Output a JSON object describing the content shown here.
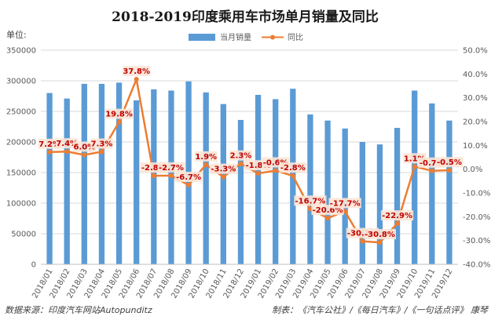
{
  "chart_data": {
    "type": "bar+line",
    "title": "2018-2019印度乘用车市场单月销量及同比",
    "y_unit_label": "单位:",
    "categories": [
      "2018/01",
      "2018/02",
      "2018/03",
      "2018/04",
      "2018/05",
      "2018/06",
      "2018/07",
      "2018/08",
      "2018/09",
      "2018/10",
      "2018/11",
      "2018/12",
      "2019/01",
      "2019/02",
      "2019/03",
      "2019/04",
      "2019/05",
      "2019/06",
      "2019/07",
      "2019/08",
      "2019/09",
      "2019/10",
      "2019/11",
      "2019/12"
    ],
    "series": [
      {
        "name": "当月销量",
        "kind": "bar",
        "axis": "left",
        "color": "#5b9bd5",
        "values": [
          280000,
          271000,
          295000,
          295000,
          297000,
          268000,
          286000,
          284000,
          299000,
          281000,
          262000,
          236000,
          277000,
          270000,
          287000,
          245000,
          235000,
          222000,
          200000,
          196000,
          223000,
          284000,
          263000,
          235000
        ]
      },
      {
        "name": "同比",
        "kind": "line",
        "axis": "right",
        "color": "#ed7d31",
        "values": [
          7.2,
          7.4,
          6.0,
          7.3,
          19.8,
          37.8,
          -2.8,
          -2.7,
          -6.7,
          1.9,
          -3.3,
          2.3,
          -1.8,
          -0.6,
          -2.8,
          -16.7,
          -20.6,
          -17.7,
          -30.3,
          -30.8,
          -22.9,
          1.1,
          -0.7,
          -0.5
        ],
        "labels": [
          "7.2%",
          "7.4%",
          "6.0%",
          "7.3%",
          "19.8%",
          "37.8%",
          "-2.8%",
          "-2.7%",
          "-6.7%",
          "1.9%",
          "-3.3%",
          "2.3%",
          "-1.8%",
          "-0.6%",
          "-2.8%",
          "-16.7%",
          "-20.6%",
          "-17.7%",
          "-30.3%",
          "-30.8%",
          "-22.9%",
          "1.1%",
          "-0.7%",
          "-0.5%"
        ]
      }
    ],
    "y_left": {
      "min": 0,
      "max": 350000,
      "step": 50000,
      "ticks": [
        "0",
        "50000",
        "100000",
        "150000",
        "200000",
        "250000",
        "300000",
        "350000"
      ]
    },
    "y_right": {
      "min": -40,
      "max": 50,
      "step": 10,
      "ticks": [
        "-40.0%",
        "-30.0%",
        "-20.0%",
        "-10.0%",
        "0.0%",
        "10.0%",
        "20.0%",
        "30.0%",
        "40.0%",
        "50.0%"
      ]
    },
    "grid": true,
    "legend_position": "top-center"
  },
  "footer": {
    "source": "数据来源：印度汽车网站Autopunditz",
    "credit": "制表：《汽车公社》/《每日汽车》/《一句话点评》 康琴"
  }
}
